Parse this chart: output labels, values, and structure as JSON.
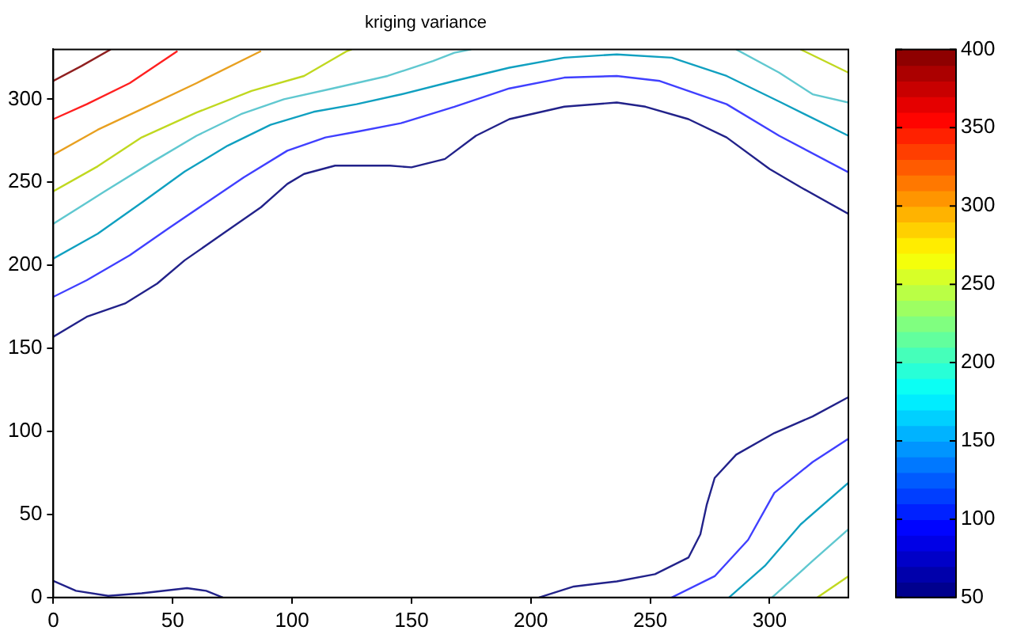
{
  "chart_data": {
    "type": "line",
    "title": "kriging variance",
    "xlim": [
      0,
      333
    ],
    "ylim": [
      0,
      330
    ],
    "xticks": [
      0,
      50,
      100,
      150,
      200,
      250,
      300
    ],
    "yticks": [
      0,
      50,
      100,
      150,
      200,
      250,
      300
    ],
    "grid": false,
    "legend": false,
    "marker": "none",
    "clim": [
      50,
      400
    ],
    "cticks": [
      50,
      100,
      150,
      200,
      250,
      300,
      350,
      400
    ],
    "series": [
      {
        "color": "#22228a",
        "x": [
          0,
          14,
          30,
          43.5,
          55,
          71,
          87,
          98,
          105,
          118,
          141,
          150,
          164,
          177,
          191,
          214,
          236,
          248,
          266,
          282,
          300,
          313,
          333
        ],
        "values": [
          157,
          169,
          177,
          189,
          203,
          219,
          235,
          249,
          255,
          260,
          260,
          259,
          264,
          278,
          288,
          295.5,
          298,
          295.5,
          288,
          277,
          258,
          247,
          231
        ]
      },
      {
        "color": "#22228a",
        "x": [
          0,
          9.5,
          23,
          37,
          56,
          64,
          71
        ],
        "values": [
          10,
          4,
          1,
          2.5,
          5.6,
          4,
          0
        ]
      },
      {
        "color": "#22228a",
        "x": [
          203.4,
          218,
          236,
          252,
          266,
          271,
          273.7,
          277,
          286,
          302,
          318,
          333
        ],
        "values": [
          0,
          6.6,
          9.7,
          14,
          24,
          38,
          56,
          72,
          86,
          99,
          109,
          120.6
        ]
      },
      {
        "color": "#4040ff",
        "x": [
          0,
          14,
          32,
          48,
          64,
          79.8,
          98,
          114,
          127.4,
          145.6,
          168,
          191,
          214,
          236,
          254,
          282,
          304,
          333
        ],
        "values": [
          181,
          191,
          206,
          222,
          237.6,
          253,
          269,
          277,
          280.5,
          285.6,
          295.5,
          306.5,
          313,
          314,
          311,
          297,
          278,
          256
        ]
      },
      {
        "color": "#4040ff",
        "x": [
          259,
          277,
          291,
          302,
          318,
          333
        ],
        "values": [
          0,
          12.8,
          34.7,
          63,
          81.5,
          95.6
        ]
      },
      {
        "color": "#10a0c0",
        "x": [
          0,
          18.6,
          37,
          55,
          73,
          91,
          109,
          127,
          145.6,
          168,
          191,
          214,
          236,
          259,
          282,
          304,
          333
        ],
        "values": [
          204,
          219,
          237.7,
          256.4,
          272,
          284.6,
          292.4,
          297,
          302.9,
          311,
          319,
          325,
          327,
          325,
          314,
          298.6,
          278
        ]
      },
      {
        "color": "#10a0c0",
        "x": [
          283,
          298,
          313,
          333
        ],
        "values": [
          0,
          19,
          44,
          69
        ]
      },
      {
        "color": "#60c8d0",
        "x": [
          0,
          21,
          42,
          60,
          78.6,
          96.6,
          117,
          140,
          159,
          168,
          175
        ],
        "values": [
          225,
          244,
          262.7,
          278,
          291,
          300,
          306.5,
          314,
          323,
          328,
          330
        ]
      },
      {
        "color": "#60c8d0",
        "x": [
          286,
          304,
          318,
          333
        ],
        "values": [
          330,
          316,
          303,
          298
        ]
      },
      {
        "color": "#60c8d0",
        "x": [
          301,
          318,
          333
        ],
        "values": [
          0,
          22,
          41
        ]
      },
      {
        "color": "#c0d820",
        "x": [
          0,
          18.6,
          37,
          60,
          83,
          105,
          123,
          125
        ],
        "values": [
          244.6,
          259.6,
          277,
          292,
          305,
          314,
          329,
          330
        ]
      },
      {
        "color": "#c0d820",
        "x": [
          313,
          333
        ],
        "values": [
          330,
          316
        ]
      },
      {
        "color": "#c0d820",
        "x": [
          320,
          333
        ],
        "values": [
          0,
          12.8
        ]
      },
      {
        "color": "#e8a020",
        "x": [
          0,
          18.6,
          37,
          60,
          87
        ],
        "values": [
          266.6,
          281.6,
          294,
          309.7,
          329
        ]
      },
      {
        "color": "#ff2020",
        "x": [
          0,
          14,
          32,
          52
        ],
        "values": [
          288,
          297,
          309.7,
          329
        ]
      },
      {
        "color": "#902020",
        "x": [
          0,
          11.8,
          24
        ],
        "values": [
          311,
          320,
          330
        ]
      }
    ]
  }
}
